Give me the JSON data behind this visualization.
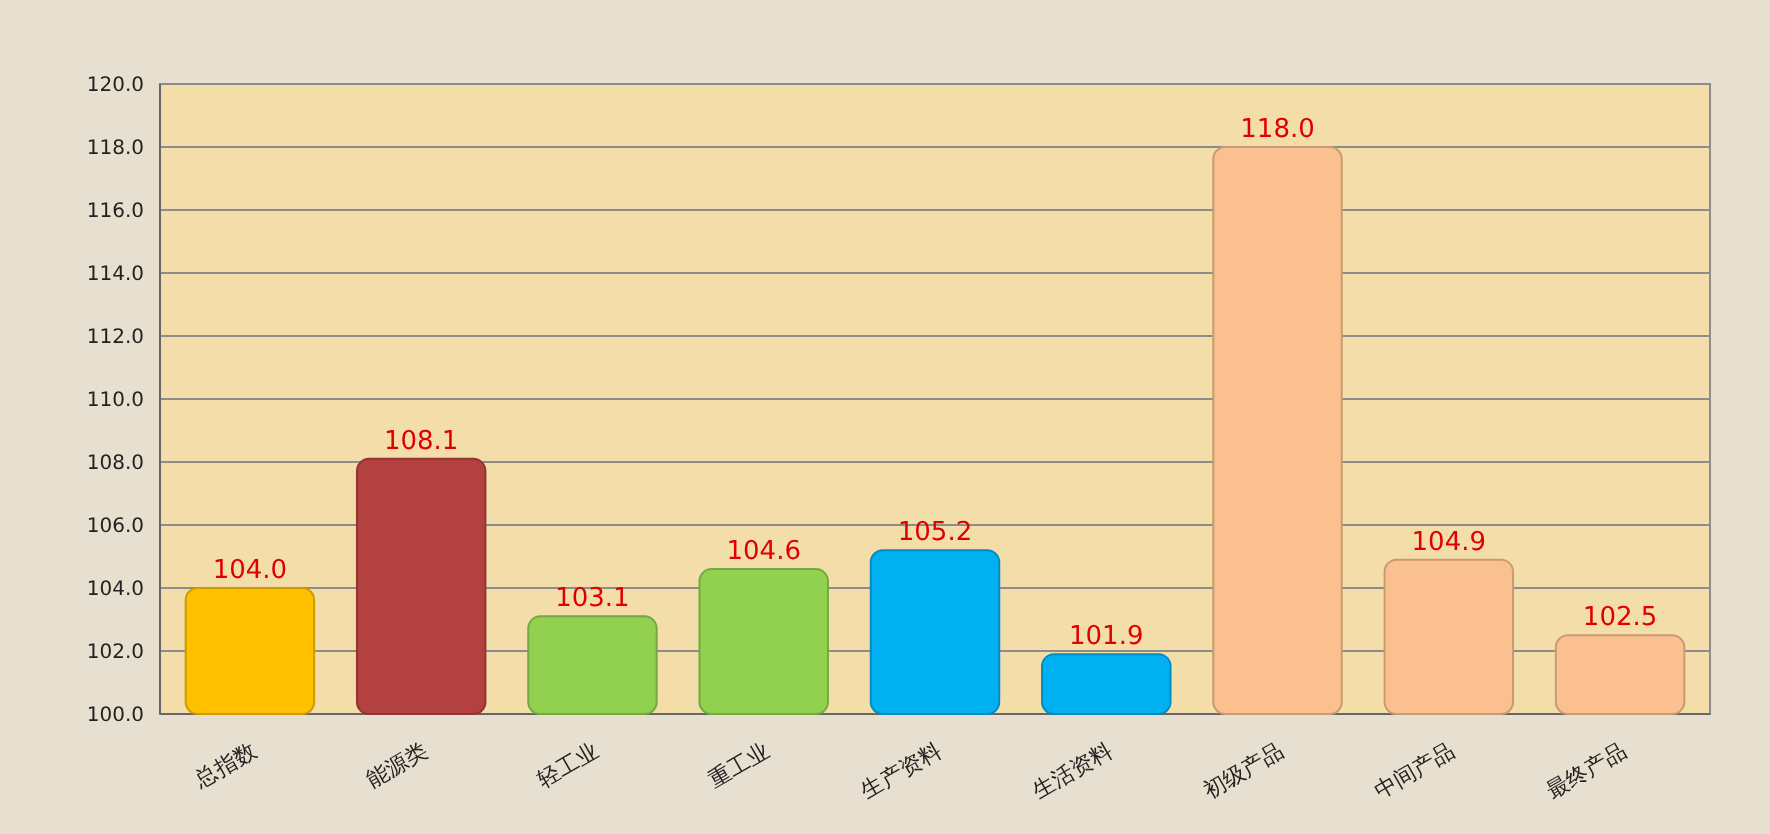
{
  "chart_data": {
    "type": "bar",
    "categories": [
      "总指数",
      "能源类",
      "轻工业",
      "重工业",
      "生产资料",
      "生活资料",
      "初级产品",
      "中间产品",
      "最终产品"
    ],
    "values": [
      104.0,
      108.1,
      103.1,
      104.6,
      105.2,
      101.9,
      118.0,
      104.9,
      102.5
    ],
    "colors": [
      "#ffc000",
      "#b3413f",
      "#92d050",
      "#92d050",
      "#00b0f0",
      "#00b0f0",
      "#fac08f",
      "#fac08f",
      "#fac08f"
    ],
    "value_labels": [
      "104.0",
      "108.1",
      "103.1",
      "104.6",
      "105.2",
      "101.9",
      "118.0",
      "104.9",
      "102.5"
    ],
    "ylim": [
      100,
      120
    ],
    "yticks": [
      {
        "value": 100,
        "label": "100.0"
      },
      {
        "value": 102,
        "label": "102.0"
      },
      {
        "value": 104,
        "label": "104.0"
      },
      {
        "value": 106,
        "label": "106.0"
      },
      {
        "value": 108,
        "label": "108.0"
      },
      {
        "value": 110,
        "label": "110.0"
      },
      {
        "value": 112,
        "label": "112.0"
      },
      {
        "value": 114,
        "label": "114.0"
      },
      {
        "value": 116,
        "label": "116.0"
      },
      {
        "value": 118,
        "label": "118.0"
      },
      {
        "value": 120,
        "label": "120.0"
      }
    ],
    "grid": "y"
  }
}
